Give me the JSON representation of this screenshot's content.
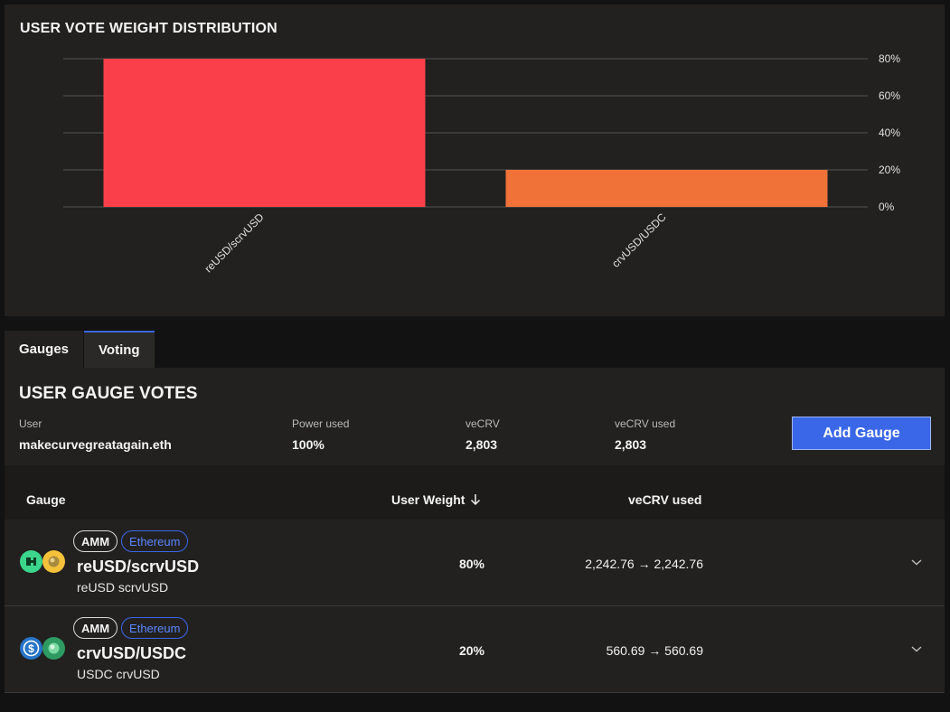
{
  "chart_card": {
    "title": "USER VOTE WEIGHT DISTRIBUTION"
  },
  "chart_data": {
    "type": "bar",
    "title": "USER VOTE WEIGHT DISTRIBUTION",
    "categories": [
      "reUSD/scrvUSD",
      "crvUSD/USDC"
    ],
    "values": [
      80,
      20
    ],
    "colors": [
      "#fb3f4a",
      "#f07239"
    ],
    "ylim": [
      0,
      80
    ],
    "yticks": [
      "0%",
      "20%",
      "40%",
      "60%",
      "80%"
    ],
    "ytick_values": [
      0,
      20,
      40,
      60,
      80
    ],
    "yaxis_side": "right",
    "grid": true
  },
  "tabs": [
    {
      "label": "Gauges",
      "active": false
    },
    {
      "label": "Voting",
      "active": true
    }
  ],
  "votes": {
    "title": "USER GAUGE VOTES",
    "user_label": "User",
    "user_value": "makecurvegreatagain.eth",
    "power_label": "Power used",
    "power_value": "100%",
    "vecrv_label": "veCRV",
    "vecrv_value": "2,803",
    "vecrv_used_label": "veCRV used",
    "vecrv_used_value": "2,803",
    "add_button": "Add Gauge"
  },
  "table": {
    "headers": {
      "gauge": "Gauge",
      "weight": "User Weight",
      "weight_sort_icon": "arrow-down-icon",
      "vecrv": "veCRV used"
    },
    "rows": [
      {
        "type_badge": "AMM",
        "chain_badge": "Ethereum",
        "name": "reUSD/scrvUSD",
        "tokens": "reUSD scrvUSD",
        "weight": "80%",
        "vecrv_used": "2,242.76 → 2,242.76",
        "coin_icons": [
          "reusd-icon",
          "scrvusd-icon"
        ]
      },
      {
        "type_badge": "AMM",
        "chain_badge": "Ethereum",
        "name": "crvUSD/USDC",
        "tokens": "USDC crvUSD",
        "weight": "20%",
        "vecrv_used": "560.69 → 560.69",
        "coin_icons": [
          "usdc-icon",
          "crvusd-icon"
        ]
      }
    ]
  },
  "colors": {
    "accent": "#3a67e8",
    "background": "#121212",
    "card": "#222120"
  }
}
